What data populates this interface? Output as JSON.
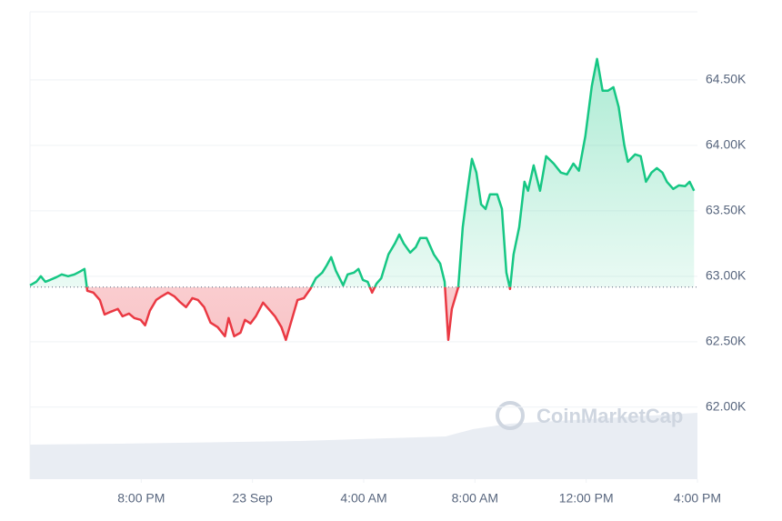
{
  "chart_data": {
    "type": "line",
    "watermark": "CoinMarketCap",
    "x": [
      0.0,
      0.23,
      0.39,
      0.55,
      0.72,
      0.95,
      1.14,
      1.37,
      1.6,
      1.79,
      1.96,
      2.06,
      2.28,
      2.51,
      2.68,
      2.9,
      3.16,
      3.33,
      3.56,
      3.75,
      3.98,
      4.14,
      4.31,
      4.54,
      4.73,
      4.96,
      5.19,
      5.38,
      5.61,
      5.84,
      6.04,
      6.26,
      6.49,
      6.75,
      7.01,
      7.14,
      7.34,
      7.57,
      7.73,
      7.93,
      8.12,
      8.38,
      8.58,
      8.81,
      9.04,
      9.2,
      9.43,
      9.62,
      9.85,
      10.08,
      10.28,
      10.51,
      10.67,
      10.83,
      11.0,
      11.26,
      11.42,
      11.65,
      11.81,
      11.97,
      12.14,
      12.3,
      12.46,
      12.63,
      12.89,
      13.12,
      13.28,
      13.44,
      13.67,
      13.87,
      14.03,
      14.26,
      14.52,
      14.75,
      14.91,
      15.04,
      15.17,
      15.4,
      15.56,
      15.73,
      15.89,
      16.05,
      16.22,
      16.38,
      16.54,
      16.8,
      16.97,
      17.13,
      17.26,
      17.39,
      17.59,
      17.78,
      17.91,
      18.11,
      18.34,
      18.56,
      18.83,
      19.09,
      19.31,
      19.54,
      19.74,
      19.97,
      20.2,
      20.39,
      20.59,
      20.78,
      20.98,
      21.17,
      21.37,
      21.5,
      21.76,
      21.96,
      22.15,
      22.35,
      22.54,
      22.74,
      22.9,
      23.13,
      23.33,
      23.56,
      23.72,
      23.88
    ],
    "values": [
      62931,
      62958,
      63000,
      62958,
      62972,
      62993,
      63014,
      63000,
      63014,
      63035,
      63056,
      62889,
      62875,
      62819,
      62708,
      62729,
      62750,
      62694,
      62715,
      62681,
      62667,
      62625,
      62736,
      62819,
      62847,
      62875,
      62847,
      62806,
      62764,
      62833,
      62819,
      62764,
      62646,
      62611,
      62542,
      62681,
      62542,
      62569,
      62667,
      62639,
      62694,
      62799,
      62750,
      62694,
      62611,
      62514,
      62681,
      62819,
      62833,
      62903,
      62986,
      63028,
      63083,
      63146,
      63042,
      62931,
      63014,
      63028,
      63056,
      62972,
      62958,
      62875,
      62944,
      62986,
      63167,
      63250,
      63319,
      63250,
      63181,
      63222,
      63292,
      63292,
      63167,
      63097,
      62958,
      62514,
      62750,
      62917,
      63375,
      63653,
      63896,
      63792,
      63549,
      63514,
      63625,
      63625,
      63514,
      63028,
      62903,
      63167,
      63375,
      63722,
      63653,
      63847,
      63653,
      63917,
      63861,
      63792,
      63778,
      63861,
      63806,
      64069,
      64451,
      64660,
      64417,
      64417,
      64444,
      64292,
      64000,
      63875,
      63931,
      63917,
      63722,
      63792,
      63826,
      63792,
      63722,
      63667,
      63694,
      63688,
      63722,
      63653
    ],
    "baseline": 62917,
    "up_color": "#16c784",
    "down_color": "#ea3943",
    "xlim": [
      0,
      24
    ],
    "xticks": [
      {
        "value": 4,
        "label": "8:00 PM"
      },
      {
        "value": 8,
        "label": "23 Sep"
      },
      {
        "value": 12,
        "label": "4:00 AM"
      },
      {
        "value": 16,
        "label": "8:00 AM"
      },
      {
        "value": 20,
        "label": "12:00 PM"
      },
      {
        "value": 24,
        "label": "4:00 PM"
      }
    ],
    "ylim": [
      61450,
      65020
    ],
    "yticks": [
      {
        "value": 62000,
        "label": "62.00K"
      },
      {
        "value": 62500,
        "label": "62.50K"
      },
      {
        "value": 63000,
        "label": "63.00K"
      },
      {
        "value": 63500,
        "label": "63.50K"
      },
      {
        "value": 64000,
        "label": "64.00K"
      },
      {
        "value": 64500,
        "label": "64.50K"
      }
    ],
    "grid": true
  }
}
